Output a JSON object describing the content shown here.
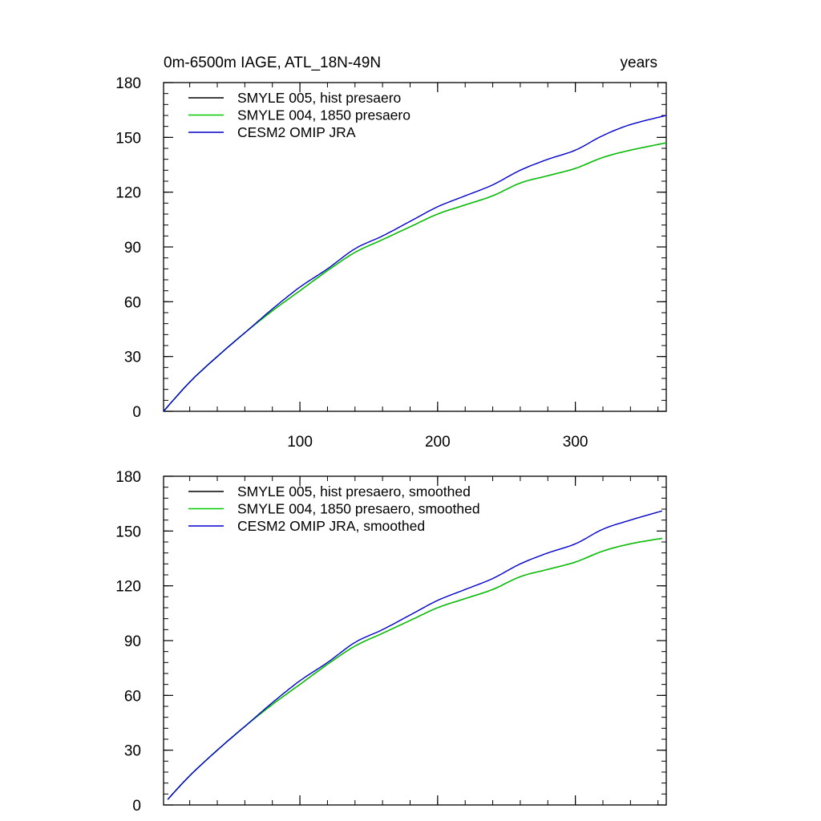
{
  "chart_data": [
    {
      "type": "line",
      "title": "0m-6500m IAGE, ATL_18N-49N",
      "units": "years",
      "xlim": [
        1,
        366
      ],
      "ylim": [
        0,
        180
      ],
      "xticks": [
        100,
        200,
        300
      ],
      "xtick_labels": [
        "100",
        "200",
        "300"
      ],
      "yticks": [
        0,
        30,
        60,
        90,
        120,
        150,
        180
      ],
      "ytick_labels": [
        "0",
        "30",
        "60",
        "90",
        "120",
        "150",
        "180"
      ],
      "legend": "top-left",
      "series": [
        {
          "name": "SMYLE 005, hist presaero",
          "color": "#000000",
          "x": [
            1,
            20,
            40,
            60,
            80,
            100,
            120,
            140,
            160,
            180,
            200,
            220,
            240,
            260,
            280,
            300,
            320,
            340,
            366
          ],
          "y": [
            0,
            16,
            30,
            43,
            55,
            66,
            77,
            87,
            94,
            101,
            108,
            113,
            118,
            125,
            129,
            133,
            139,
            143,
            147
          ]
        },
        {
          "name": "SMYLE 004, 1850 presaero",
          "color": "#00cc00",
          "x": [
            1,
            20,
            40,
            60,
            80,
            100,
            120,
            140,
            160,
            180,
            200,
            220,
            240,
            260,
            280,
            300,
            320,
            340,
            366
          ],
          "y": [
            0,
            16,
            30,
            43,
            55,
            66,
            77,
            87,
            94,
            101,
            108,
            113,
            118,
            125,
            129,
            133,
            139,
            143,
            147
          ]
        },
        {
          "name": "CESM2 OMIP JRA",
          "color": "#0000cc",
          "x": [
            1,
            20,
            40,
            60,
            80,
            100,
            120,
            140,
            160,
            180,
            200,
            220,
            240,
            260,
            280,
            300,
            320,
            340,
            366
          ],
          "y": [
            0,
            16,
            30,
            43,
            56,
            68,
            78,
            89,
            96,
            104,
            112,
            118,
            124,
            132,
            138,
            143,
            151,
            157,
            162
          ]
        }
      ]
    },
    {
      "type": "line",
      "xlim": [
        1,
        366
      ],
      "ylim": [
        0,
        180
      ],
      "xticks": [
        100,
        200,
        300
      ],
      "yticks": [
        0,
        30,
        60,
        90,
        120,
        150,
        180
      ],
      "ytick_labels": [
        "0",
        "30",
        "60",
        "90",
        "120",
        "150",
        "180"
      ],
      "legend": "top-left",
      "series": [
        {
          "name": "SMYLE 005, hist presaero, smoothed",
          "color": "#000000",
          "x": [
            4,
            20,
            40,
            60,
            80,
            100,
            120,
            140,
            160,
            180,
            200,
            220,
            240,
            260,
            280,
            300,
            320,
            340,
            363
          ],
          "y": [
            3,
            16,
            30,
            43,
            55,
            66,
            77,
            87,
            94,
            101,
            108,
            113,
            118,
            125,
            129,
            133,
            139,
            143,
            146
          ]
        },
        {
          "name": "SMYLE 004, 1850 presaero, smoothed",
          "color": "#00cc00",
          "x": [
            4,
            20,
            40,
            60,
            80,
            100,
            120,
            140,
            160,
            180,
            200,
            220,
            240,
            260,
            280,
            300,
            320,
            340,
            363
          ],
          "y": [
            3,
            16,
            30,
            43,
            55,
            66,
            77,
            87,
            94,
            101,
            108,
            113,
            118,
            125,
            129,
            133,
            139,
            143,
            146
          ]
        },
        {
          "name": "CESM2 OMIP JRA, smoothed",
          "color": "#0000cc",
          "x": [
            4,
            20,
            40,
            60,
            80,
            100,
            120,
            140,
            160,
            180,
            200,
            220,
            240,
            260,
            280,
            300,
            320,
            340,
            363
          ],
          "y": [
            3,
            16,
            30,
            43,
            56,
            68,
            78,
            89,
            96,
            104,
            112,
            118,
            124,
            132,
            138,
            143,
            151,
            156,
            161
          ]
        }
      ]
    }
  ]
}
